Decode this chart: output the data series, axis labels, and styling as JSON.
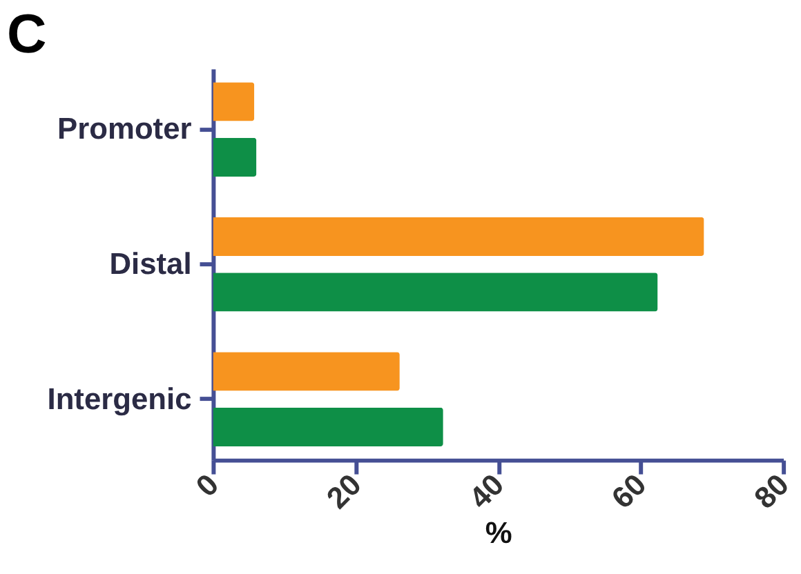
{
  "chart_data": {
    "type": "bar",
    "orientation": "horizontal",
    "title": "C",
    "xlabel": "%",
    "categories": [
      "Promoter",
      "Distal",
      "Intergenic"
    ],
    "series": [
      {
        "color": "#f7941f",
        "values": [
          5.8,
          68.9,
          26.2
        ]
      },
      {
        "color": "#0e8f47",
        "values": [
          6.1,
          62.4,
          32.3
        ]
      }
    ],
    "xlim": [
      0,
      80
    ],
    "xticks": [
      0,
      20,
      40,
      60,
      80
    ],
    "grid": false,
    "legend": false
  }
}
